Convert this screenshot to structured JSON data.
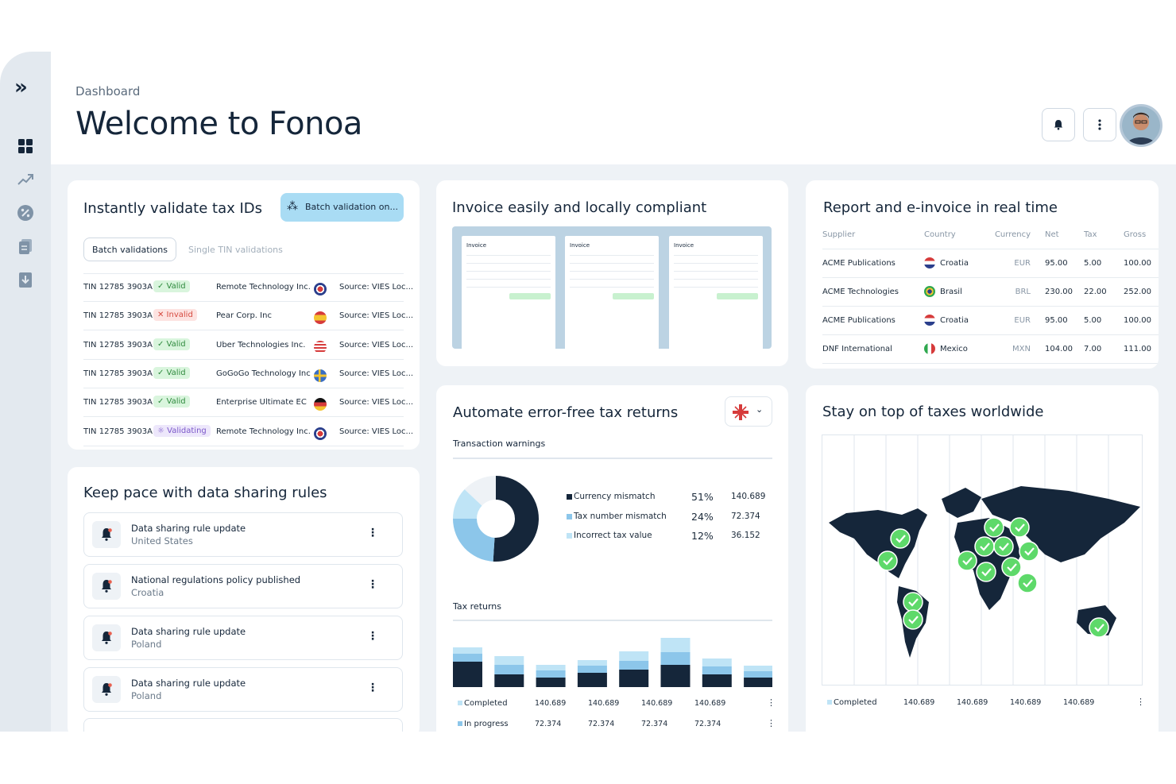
{
  "colors": {
    "navy": "#15263a",
    "light_blue": "#bfe4f6",
    "mid_blue": "#8cc6ea",
    "green": "#5ed96a"
  },
  "sidebar": {
    "logo": "»",
    "items": [
      "dashboard-icon",
      "trend-icon",
      "percent-icon",
      "documents-icon",
      "download-icon"
    ]
  },
  "header": {
    "breadcrumb": "Dashboard",
    "title": "Welcome to Fonoa"
  },
  "validate": {
    "title": "Instantly validate tax IDs",
    "batch_button": "Batch validation on...",
    "tabs": [
      "Batch validations",
      "Single TIN validations"
    ],
    "rows": [
      {
        "tin": "TIN 12785 3903A",
        "status": "✓ Valid",
        "company": "Remote Technology Inc.",
        "flag": "uk",
        "source": "Source: VIES Loc..."
      },
      {
        "tin": "TIN 12785 3903A",
        "status": "✕ Invalid",
        "company": "Pear Corp. Inc",
        "flag": "es",
        "source": "Source: VIES Loc..."
      },
      {
        "tin": "TIN 12785 3903A",
        "status": "✓ Valid",
        "company": "Uber Technologies Inc.",
        "flag": "us",
        "source": "Source: VIES Loc..."
      },
      {
        "tin": "TIN 12785 3903A",
        "status": "✓ Valid",
        "company": "GoGoGo Technology Inc",
        "flag": "se",
        "source": "Source: VIES Loc..."
      },
      {
        "tin": "TIN 12785 3903A",
        "status": "✓ Valid",
        "company": "Enterprise Ultimate EC",
        "flag": "de",
        "source": "Source: VIES Loc..."
      },
      {
        "tin": "TIN 12785 3903A",
        "status": "☼ Validating",
        "company": "Remote Technology Inc.",
        "flag": "uk",
        "source": "Source: VIES Loc..."
      }
    ]
  },
  "rules": {
    "title": "Keep pace with data sharing rules",
    "items": [
      {
        "title": "Data sharing rule update",
        "sub": "United States"
      },
      {
        "title": "National regulations policy published",
        "sub": "Croatia"
      },
      {
        "title": "Data sharing rule update",
        "sub": "Poland"
      },
      {
        "title": "Data sharing rule update",
        "sub": "Poland"
      }
    ]
  },
  "invoice": {
    "title": "Invoice easily and locally compliant",
    "sheets": [
      "Invoice",
      "Invoice",
      "Invoice"
    ]
  },
  "report": {
    "title": "Report and e-invoice in real time",
    "columns": [
      "Supplier",
      "Country",
      "Currency",
      "Net",
      "Tax",
      "Gross"
    ],
    "rows": [
      {
        "supplier": "ACME Publications",
        "country": "Croatia",
        "flag": "hr",
        "currency": "EUR",
        "net": "95.00",
        "tax": "5.00",
        "gross": "100.00"
      },
      {
        "supplier": "ACME Technologies",
        "country": "Brasil",
        "flag": "br",
        "currency": "BRL",
        "net": "230.00",
        "tax": "22.00",
        "gross": "252.00"
      },
      {
        "supplier": "ACME Publications",
        "country": "Croatia",
        "flag": "hr",
        "currency": "EUR",
        "net": "95.00",
        "tax": "5.00",
        "gross": "100.00"
      },
      {
        "supplier": "DNF International",
        "country": "Mexico",
        "flag": "mx",
        "currency": "MXN",
        "net": "104.00",
        "tax": "7.00",
        "gross": "111.00"
      }
    ]
  },
  "returns": {
    "title": "Automate error-free tax returns",
    "warnings_label": "Transaction warnings",
    "warnings": [
      {
        "label": "Currency mismatch",
        "pct": "51%",
        "value": "140.689",
        "color": "#15263a"
      },
      {
        "label": "Tax number mismatch",
        "pct": "24%",
        "value": "72.374",
        "color": "#8cc6ea"
      },
      {
        "label": "Incorrect tax value",
        "pct": "12%",
        "value": "36.152",
        "color": "#bfe4f6"
      }
    ],
    "tax_returns_label": "Tax returns",
    "footer": [
      {
        "label": "Completed",
        "values": [
          "140.689",
          "140.689",
          "140.689",
          "140.689"
        ]
      },
      {
        "label": "In progress",
        "values": [
          "72.374",
          "72.374",
          "72.374",
          "72.374"
        ]
      }
    ]
  },
  "chart_data": [
    {
      "type": "pie",
      "title": "Transaction warnings",
      "categories": [
        "Currency mismatch",
        "Tax number mismatch",
        "Incorrect tax value"
      ],
      "values": [
        51,
        24,
        12
      ]
    },
    {
      "type": "bar",
      "title": "Tax returns",
      "categories": [
        "1",
        "2",
        "3",
        "4",
        "5",
        "6",
        "7",
        "8"
      ],
      "series": [
        {
          "name": "Completed",
          "values": [
            32,
            16,
            12,
            18,
            22,
            28,
            16,
            12
          ]
        },
        {
          "name": "In progress",
          "values": [
            10,
            12,
            9,
            9,
            11,
            16,
            10,
            8
          ]
        },
        {
          "name": "",
          "values": [
            8,
            11,
            7,
            7,
            12,
            18,
            10,
            7
          ]
        }
      ]
    }
  ],
  "worldwide": {
    "title": "Stay on top of taxes worldwide",
    "footer": [
      {
        "label": "Completed",
        "values": [
          "140.689",
          "140.689",
          "140.689",
          "140.689"
        ]
      }
    ]
  }
}
